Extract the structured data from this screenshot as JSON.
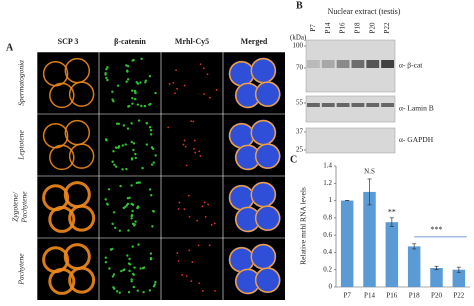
{
  "panel_a": {
    "label": "A",
    "columns": [
      "SCP 3",
      "β-catenin",
      "Mrhl-Cy5",
      "Merged"
    ],
    "rows": [
      "Spermatogonia",
      "Leptotene",
      [
        "Zygotene/",
        "Pachytene"
      ],
      "Pachytene"
    ]
  },
  "panel_b": {
    "label": "B",
    "title": "Nuclear extract (testis)",
    "lanes": [
      "P7",
      "P14",
      "P16",
      "P18",
      "P20",
      "P22"
    ],
    "kda_label": "(kDa)",
    "blots": [
      {
        "markers": [
          "100",
          "70"
        ],
        "antibody": "α- β-cat"
      },
      {
        "markers": [
          "55"
        ],
        "antibody": "α- Lamin B"
      },
      {
        "markers": [
          "37",
          "25"
        ],
        "antibody": "α- GAPDH"
      }
    ]
  },
  "chart_data": {
    "type": "bar",
    "label": "C",
    "y_label": "Relative mrhl RNA levels",
    "categories": [
      "P7",
      "P14",
      "P16",
      "P18",
      "P20",
      "P22"
    ],
    "values": [
      1.0,
      1.1,
      0.75,
      0.47,
      0.22,
      0.2
    ],
    "errors": [
      0,
      0.15,
      0.05,
      0.03,
      0.02,
      0.03
    ],
    "color": "#5b9bd5",
    "ylim": [
      0,
      1.4
    ],
    "yticks": [
      0,
      0.2,
      0.4,
      0.6,
      0.8,
      1,
      1.2,
      1.4
    ],
    "annotations": [
      "N.S",
      "**",
      "***"
    ]
  }
}
